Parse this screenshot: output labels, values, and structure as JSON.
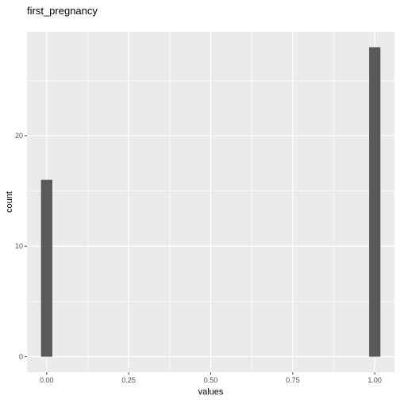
{
  "chart_data": {
    "type": "bar",
    "title": "first_pregnancy",
    "xlabel": "values",
    "ylabel": "count",
    "x": [
      0,
      1
    ],
    "values": [
      16,
      28
    ],
    "xlim": [
      -0.06,
      1.06
    ],
    "ylim": [
      -1.4,
      29.4
    ],
    "xticks": [
      0,
      0.25,
      0.5,
      0.75,
      1
    ],
    "xtick_labels": [
      "0.00",
      "0.25",
      "0.50",
      "0.75",
      "1.00"
    ],
    "yticks": [
      0,
      10,
      20
    ],
    "ytick_labels": [
      "0",
      "10",
      "20"
    ],
    "bar_width": 0.0345,
    "grid": true,
    "panel_color": "#ebebeb",
    "grid_color": "#ffffff",
    "bar_color": "#595959"
  }
}
